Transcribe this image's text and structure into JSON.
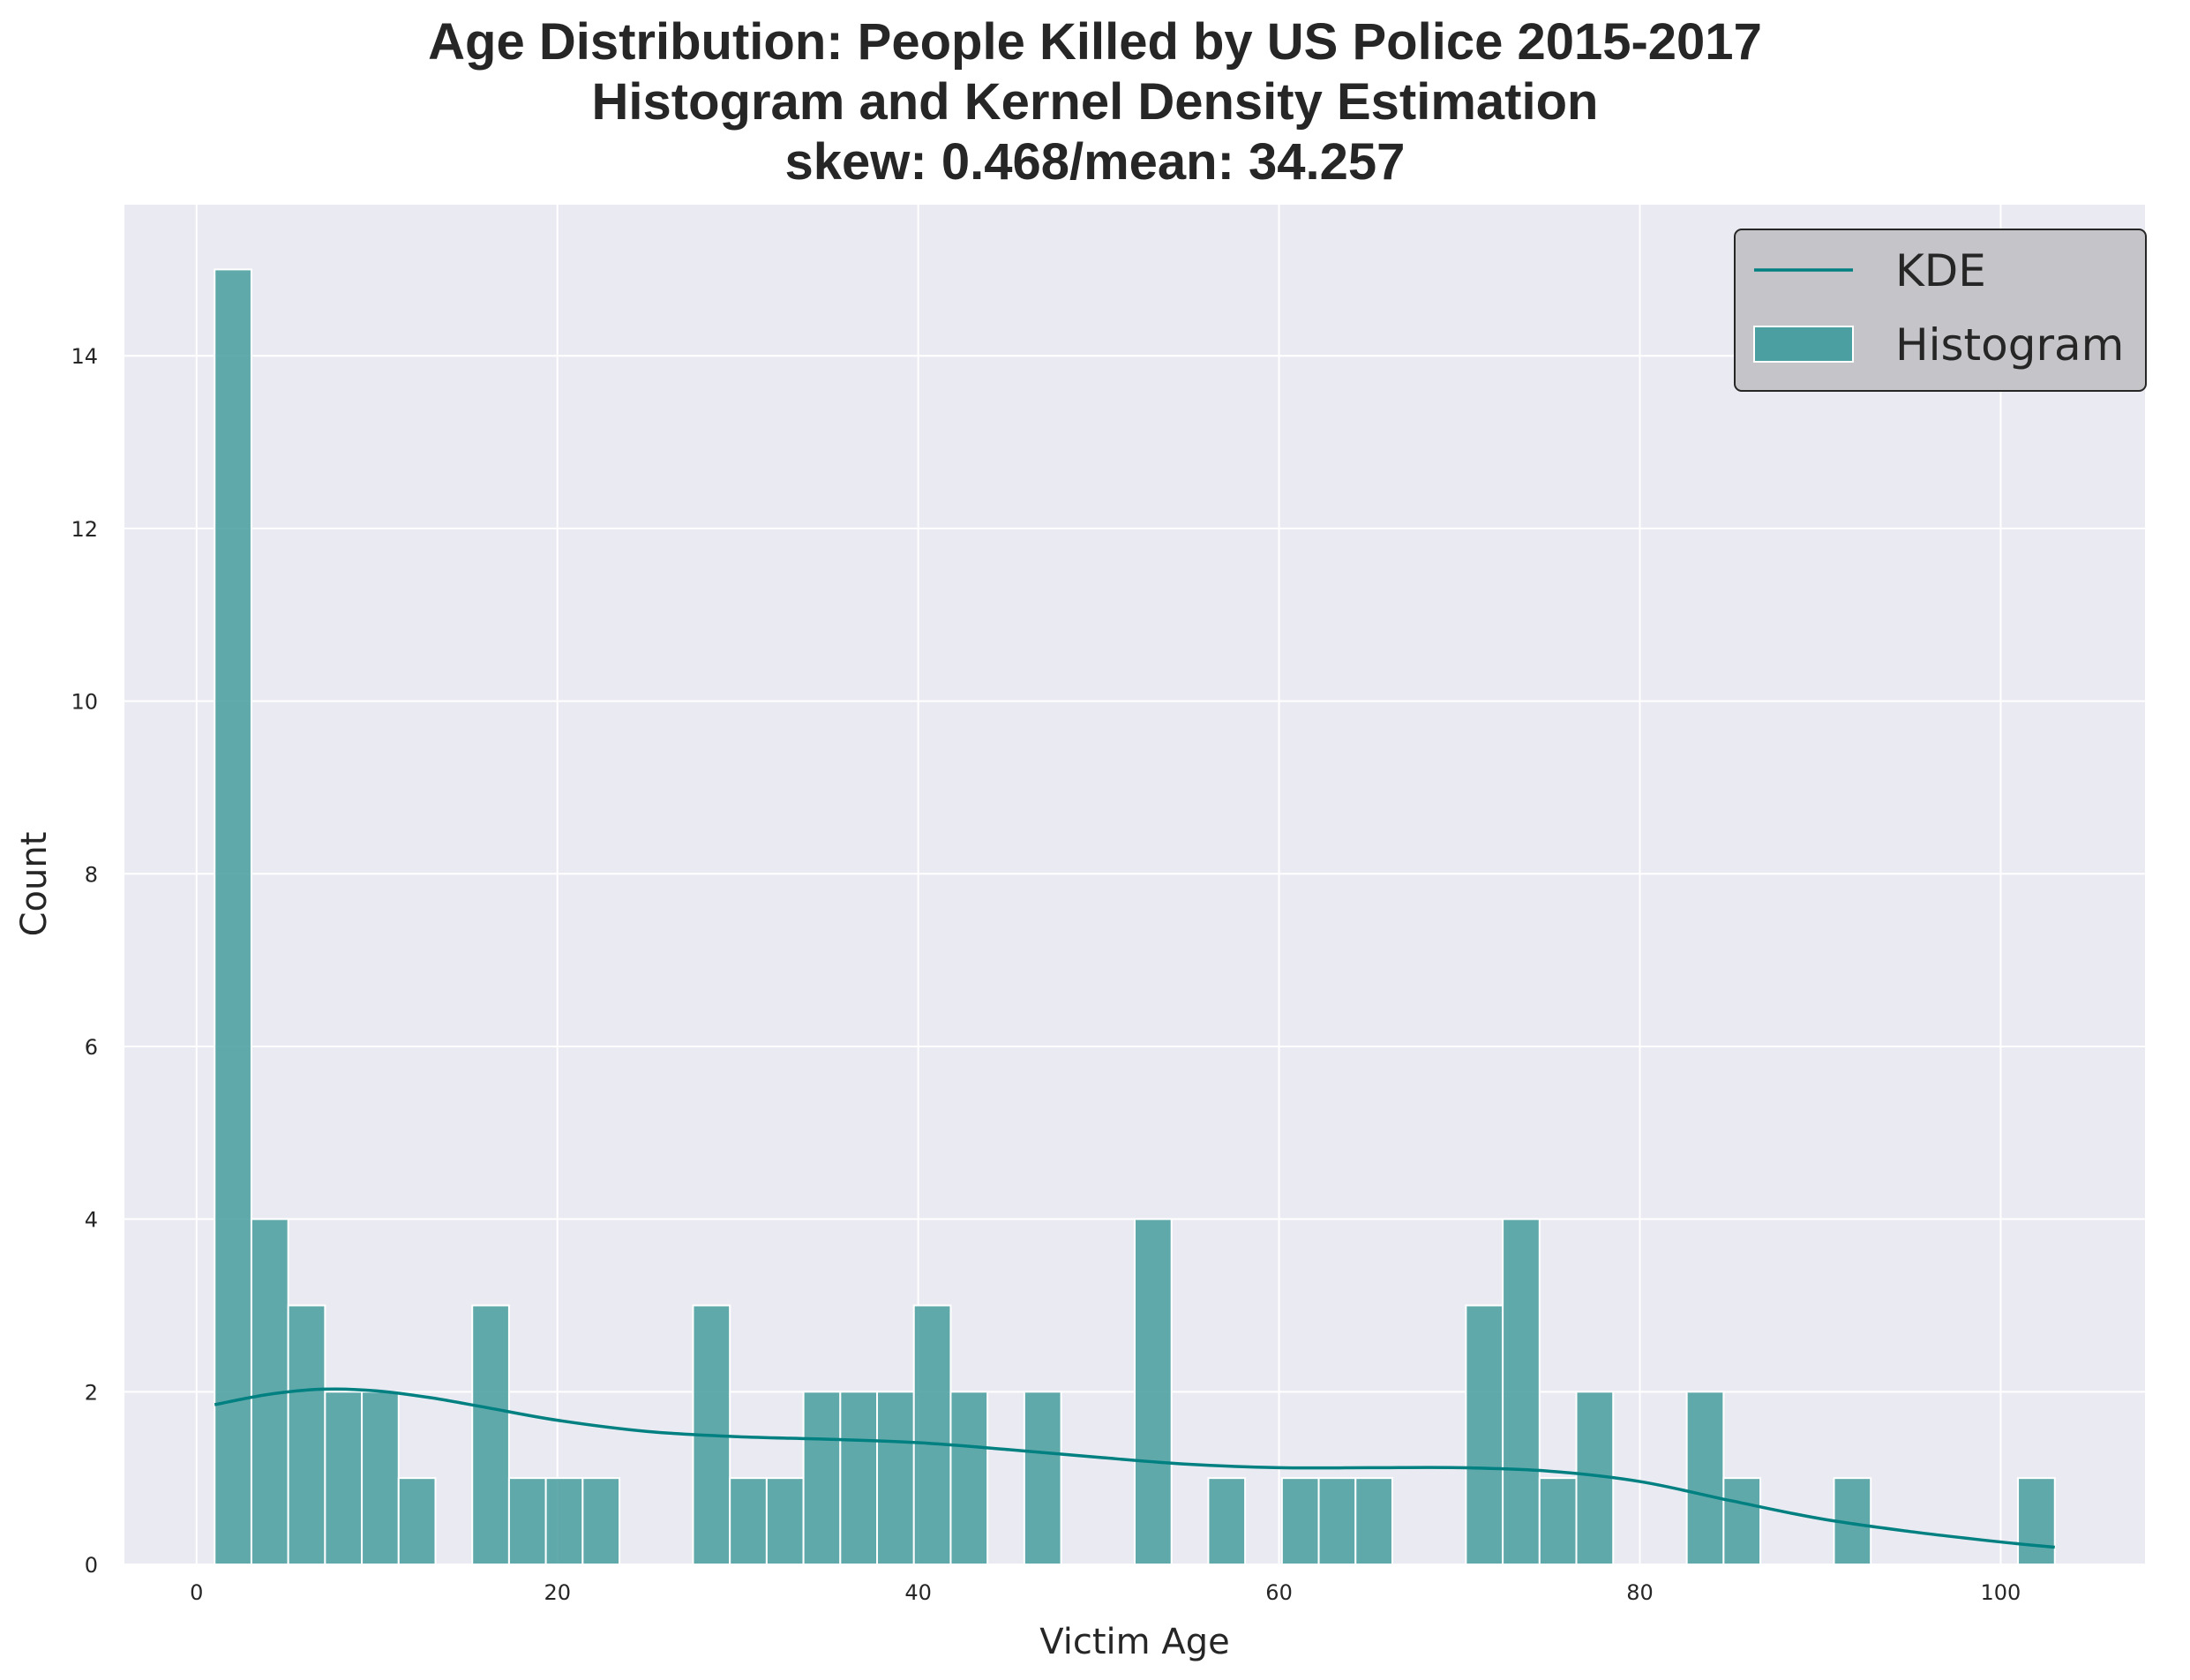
{
  "chart_data": {
    "type": "bar",
    "title": [
      "Age Distribution: People Killed by US Police 2015-2017",
      "Histogram and Kernel Density Estimation",
      "skew: 0.468/mean: 34.257"
    ],
    "xlabel": "Victim Age",
    "ylabel": "Count",
    "xlim": [
      -4,
      108
    ],
    "ylim": [
      0,
      15.75
    ],
    "xticks": [
      0,
      20,
      40,
      60,
      80,
      100
    ],
    "yticks": [
      0,
      2,
      4,
      6,
      8,
      10,
      12,
      14
    ],
    "grid": true,
    "legend": {
      "position": "top-right",
      "entries": [
        "KDE",
        "Histogram"
      ]
    },
    "bin_width": 2.04,
    "histogram": {
      "name": "Histogram",
      "bin_starts": [
        1,
        3.04,
        5.08,
        7.12,
        9.16,
        11.2,
        15.28,
        17.32,
        19.36,
        21.4,
        27.52,
        29.56,
        31.6,
        33.64,
        35.68,
        37.72,
        39.76,
        41.8,
        45.88,
        52,
        56.08,
        60.16,
        62.2,
        64.24,
        70.36,
        72.4,
        74.44,
        76.48,
        82.6,
        84.64,
        90.76,
        100.96
      ],
      "counts": [
        15,
        4,
        3,
        2,
        2,
        1,
        3,
        1,
        1,
        1,
        3,
        1,
        1,
        2,
        2,
        2,
        3,
        2,
        2,
        4,
        1,
        1,
        1,
        1,
        3,
        4,
        1,
        2,
        2,
        1,
        1,
        1
      ]
    },
    "kde": {
      "name": "KDE",
      "x": [
        1,
        4,
        7,
        10,
        13,
        16,
        20,
        25,
        30,
        35,
        40,
        45,
        50,
        55,
        60,
        65,
        70,
        75,
        80,
        85,
        90,
        95,
        100,
        103
      ],
      "y": [
        1.85,
        1.97,
        2.03,
        2.01,
        1.93,
        1.82,
        1.67,
        1.54,
        1.48,
        1.45,
        1.41,
        1.33,
        1.24,
        1.16,
        1.12,
        1.12,
        1.12,
        1.08,
        0.96,
        0.74,
        0.53,
        0.38,
        0.26,
        0.2
      ]
    },
    "colors": {
      "bar": "#4c9fa0",
      "kde": "#008080",
      "background": "#eaeaf2",
      "grid": "#ffffff",
      "legend_bg": "#c5c5c9"
    }
  }
}
